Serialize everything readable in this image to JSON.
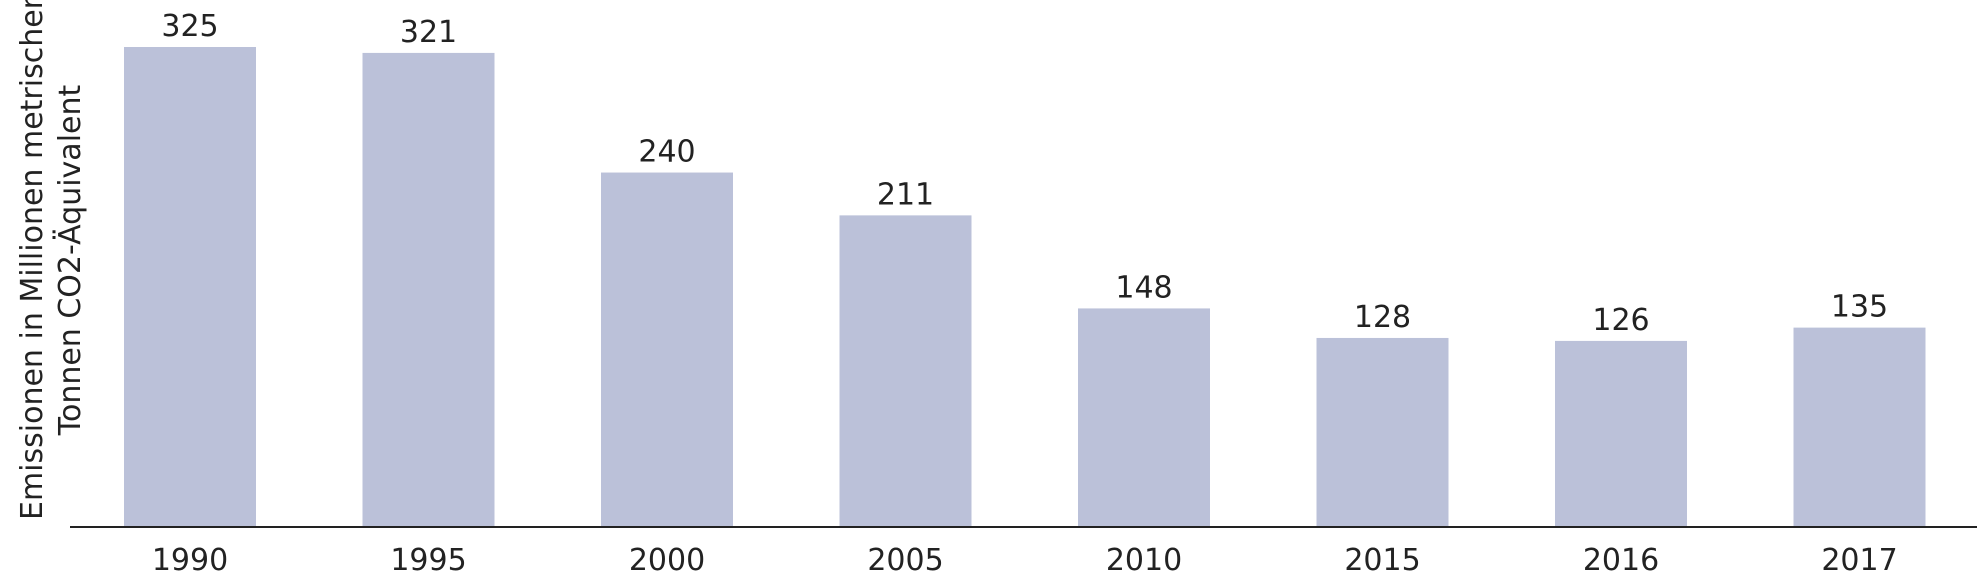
{
  "chart_data": {
    "type": "bar",
    "categories": [
      "1990",
      "1995",
      "2000",
      "2005",
      "2010",
      "2015",
      "2016",
      "2017"
    ],
    "values": [
      325,
      321,
      240,
      211,
      148,
      128,
      126,
      135
    ],
    "ylabel_line1": "Emissionen in Millionen metrischen",
    "ylabel_line2": "Tonnen CO2-Äquivalent",
    "ylim": [
      0,
      325
    ],
    "grid": false,
    "bar_color": "#bbc1d9",
    "axis_color": "#222222"
  }
}
